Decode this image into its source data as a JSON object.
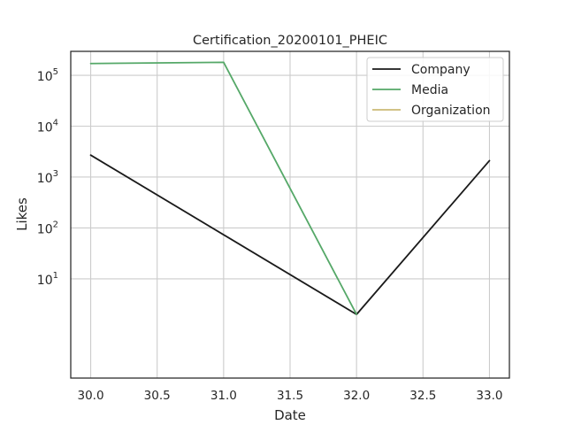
{
  "chart_data": {
    "type": "line",
    "title": "Certification_20200101_PHEIC",
    "xlabel": "Date",
    "ylabel": "Likes",
    "y_scale": "log",
    "xlim": [
      29.85,
      33.15
    ],
    "ylim_log10": [
      -0.95,
      5.47
    ],
    "grid": true,
    "legend_position": "top-right",
    "x_ticks": [
      {
        "value": 30.0,
        "label": "30.0"
      },
      {
        "value": 30.5,
        "label": "30.5"
      },
      {
        "value": 31.0,
        "label": "31.0"
      },
      {
        "value": 31.5,
        "label": "31.5"
      },
      {
        "value": 32.0,
        "label": "32.0"
      },
      {
        "value": 32.5,
        "label": "32.5"
      },
      {
        "value": 33.0,
        "label": "33.0"
      }
    ],
    "y_ticks": [
      {
        "exp": 1,
        "base": "10",
        "sup": "1"
      },
      {
        "exp": 2,
        "base": "10",
        "sup": "2"
      },
      {
        "exp": 3,
        "base": "10",
        "sup": "3"
      },
      {
        "exp": 4,
        "base": "10",
        "sup": "4"
      },
      {
        "exp": 5,
        "base": "10",
        "sup": "5"
      }
    ],
    "series": [
      {
        "name": "Company",
        "color": "#1a1a1a",
        "x": [
          30,
          32,
          33
        ],
        "values": [
          2700,
          2,
          2100
        ]
      },
      {
        "name": "Media",
        "color": "#55a868",
        "x": [
          30,
          31,
          32
        ],
        "values": [
          170000,
          180000,
          2
        ]
      },
      {
        "name": "Organization",
        "color": "#ccb974",
        "x": [],
        "values": []
      }
    ]
  }
}
